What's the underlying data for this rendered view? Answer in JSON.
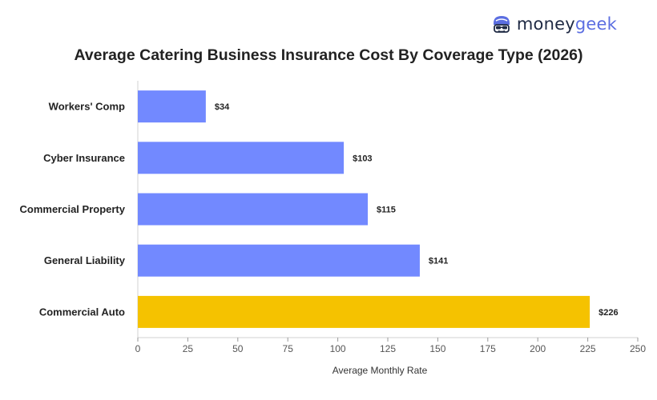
{
  "brand": {
    "part1": "money",
    "part2": "geek"
  },
  "colors": {
    "bar": "#7289ff",
    "highlight": "#f5c200",
    "text": "#222222",
    "axis": "#555555"
  },
  "chart_data": {
    "type": "bar",
    "orientation": "horizontal",
    "title": "Average Catering Business Insurance Cost By Coverage Type (2026)",
    "xlabel": "Average Monthly Rate",
    "ylabel": "",
    "xlim": [
      0,
      250
    ],
    "xticks": [
      0,
      25,
      50,
      75,
      100,
      125,
      150,
      175,
      200,
      225,
      250
    ],
    "grid": false,
    "categories": [
      "Workers' Comp",
      "Cyber Insurance",
      "Commercial Property",
      "General Liability",
      "Commercial Auto"
    ],
    "values": [
      34,
      103,
      115,
      141,
      226
    ],
    "value_labels": [
      "$34",
      "$103",
      "$115",
      "$141",
      "$226"
    ],
    "highlighted_category": "Commercial Auto"
  }
}
